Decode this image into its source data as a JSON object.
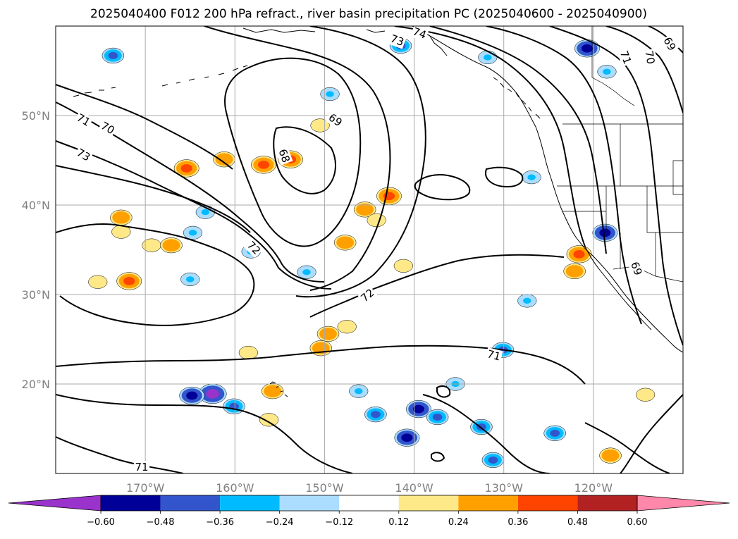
{
  "chart_data": {
    "type": "heatmap",
    "title": "2025040400 F012 200 hPa refract., river basin precipitation PC (2025040600 - 2025040900)",
    "xlabel": "",
    "ylabel": "",
    "lon_range": [
      -180,
      -110
    ],
    "lat_range": [
      10,
      60
    ],
    "x_ticks": [
      {
        "value": -170,
        "label": "170°W"
      },
      {
        "value": -160,
        "label": "160°W"
      },
      {
        "value": -150,
        "label": "150°W"
      },
      {
        "value": -140,
        "label": "140°W"
      },
      {
        "value": -130,
        "label": "130°W"
      },
      {
        "value": -120,
        "label": "120°W"
      }
    ],
    "y_ticks": [
      {
        "value": 20,
        "label": "20°N"
      },
      {
        "value": 30,
        "label": "30°N"
      },
      {
        "value": 40,
        "label": "40°N"
      },
      {
        "value": 50,
        "label": "50°N"
      }
    ],
    "grid": true,
    "colorbar": {
      "extend": "both",
      "levels": [
        -0.6,
        -0.48,
        -0.36,
        -0.24,
        -0.12,
        0.12,
        0.24,
        0.36,
        0.48,
        0.6
      ],
      "tick_labels": [
        "−0.60",
        "−0.48",
        "−0.36",
        "−0.24",
        "−0.12",
        "0.12",
        "0.24",
        "0.36",
        "0.48",
        "0.60"
      ],
      "colors": [
        "#9933cc",
        "#000099",
        "#3355cc",
        "#00bbff",
        "#aaddff",
        "#ffffff",
        "#ffe888",
        "#ffa000",
        "#ff4400",
        "#b22222",
        "#ff88aa"
      ]
    },
    "contours": {
      "variable": "200 hPa refractivity",
      "labels": [
        {
          "text": "69",
          "lon": -148.8,
          "lat": 49.5,
          "angle": 35
        },
        {
          "text": "68",
          "lon": -154.5,
          "lat": 45.5,
          "angle": 70
        },
        {
          "text": "70",
          "lon": -174.2,
          "lat": 48.6,
          "angle": 30
        },
        {
          "text": "71",
          "lon": -176.9,
          "lat": 49.5,
          "angle": 30
        },
        {
          "text": "73",
          "lon": -176.9,
          "lat": 45.6,
          "angle": 30
        },
        {
          "text": "72",
          "lon": -157.9,
          "lat": 35.2,
          "angle": 45
        },
        {
          "text": "72",
          "lon": -145.2,
          "lat": 29.9,
          "angle": -40
        },
        {
          "text": "71",
          "lon": -131.1,
          "lat": 23.2,
          "angle": 15
        },
        {
          "text": "71",
          "lon": -170.4,
          "lat": 10.7,
          "angle": 0
        },
        {
          "text": "73",
          "lon": -141.9,
          "lat": 58.4,
          "angle": 20
        },
        {
          "text": "74",
          "lon": -139.4,
          "lat": 59.2,
          "angle": 20
        },
        {
          "text": "71",
          "lon": -116.4,
          "lat": 56.5,
          "angle": 70
        },
        {
          "text": "70",
          "lon": -113.7,
          "lat": 56.5,
          "angle": 80
        },
        {
          "text": "69",
          "lon": -111.5,
          "lat": 58.0,
          "angle": 60
        },
        {
          "text": "69",
          "lon": -115.2,
          "lat": 32.9,
          "angle": 70
        }
      ]
    },
    "precip_pc_blobs": [
      {
        "lon": -165.4,
        "lat": 44.1,
        "value": 0.48
      },
      {
        "lon": -156.8,
        "lat": 44.5,
        "value": 0.48
      },
      {
        "lon": -153.8,
        "lat": 45.1,
        "value": 0.48
      },
      {
        "lon": -161.2,
        "lat": 45.1,
        "value": 0.36
      },
      {
        "lon": -150.5,
        "lat": 48.9,
        "value": 0.24
      },
      {
        "lon": -172.7,
        "lat": 38.6,
        "value": 0.36
      },
      {
        "lon": -172.7,
        "lat": 37.0,
        "value": 0.24
      },
      {
        "lon": -175.3,
        "lat": 31.4,
        "value": 0.24
      },
      {
        "lon": -171.8,
        "lat": 31.5,
        "value": 0.48
      },
      {
        "lon": -169.3,
        "lat": 35.5,
        "value": 0.24
      },
      {
        "lon": -167.1,
        "lat": 35.5,
        "value": 0.36
      },
      {
        "lon": -142.8,
        "lat": 41.0,
        "value": 0.48
      },
      {
        "lon": -147.7,
        "lat": 35.8,
        "value": 0.36
      },
      {
        "lon": -145.5,
        "lat": 39.5,
        "value": 0.36
      },
      {
        "lon": -149.6,
        "lat": 25.6,
        "value": 0.36
      },
      {
        "lon": -147.5,
        "lat": 26.4,
        "value": 0.24
      },
      {
        "lon": -150.4,
        "lat": 24.0,
        "value": 0.36
      },
      {
        "lon": -155.8,
        "lat": 19.2,
        "value": 0.36
      },
      {
        "lon": -156.2,
        "lat": 16.0,
        "value": 0.24
      },
      {
        "lon": -158.5,
        "lat": 23.5,
        "value": 0.24
      },
      {
        "lon": -121.6,
        "lat": 34.5,
        "value": 0.48
      },
      {
        "lon": -122.1,
        "lat": 32.6,
        "value": 0.36
      },
      {
        "lon": -144.2,
        "lat": 38.3,
        "value": 0.24
      },
      {
        "lon": -141.2,
        "lat": 33.2,
        "value": 0.24
      },
      {
        "lon": -118.1,
        "lat": 12.0,
        "value": 0.36
      },
      {
        "lon": -114.2,
        "lat": 18.8,
        "value": 0.24
      },
      {
        "lon": -162.5,
        "lat": 18.9,
        "value": -0.6
      },
      {
        "lon": -164.8,
        "lat": 18.7,
        "value": -0.48
      },
      {
        "lon": -160.1,
        "lat": 17.5,
        "value": -0.36
      },
      {
        "lon": -139.5,
        "lat": 17.2,
        "value": -0.48
      },
      {
        "lon": -140.8,
        "lat": 14.0,
        "value": -0.48
      },
      {
        "lon": -137.4,
        "lat": 16.3,
        "value": -0.36
      },
      {
        "lon": -144.3,
        "lat": 16.6,
        "value": -0.36
      },
      {
        "lon": -146.2,
        "lat": 19.2,
        "value": -0.24
      },
      {
        "lon": -131.2,
        "lat": 11.5,
        "value": -0.36
      },
      {
        "lon": -130.1,
        "lat": 23.8,
        "value": -0.36
      },
      {
        "lon": -124.3,
        "lat": 14.5,
        "value": -0.36
      },
      {
        "lon": -132.5,
        "lat": 15.2,
        "value": -0.36
      },
      {
        "lon": -120.7,
        "lat": 57.5,
        "value": -0.48
      },
      {
        "lon": -118.7,
        "lat": 36.9,
        "value": -0.48
      },
      {
        "lon": -141.5,
        "lat": 57.8,
        "value": -0.36
      },
      {
        "lon": -173.6,
        "lat": 56.7,
        "value": -0.36
      },
      {
        "lon": -131.8,
        "lat": 56.5,
        "value": -0.24
      },
      {
        "lon": -164.7,
        "lat": 36.9,
        "value": -0.24
      },
      {
        "lon": -158.2,
        "lat": 34.8,
        "value": -0.24
      },
      {
        "lon": -163.3,
        "lat": 39.2,
        "value": -0.24
      },
      {
        "lon": -149.4,
        "lat": 52.4,
        "value": -0.24
      },
      {
        "lon": -126.9,
        "lat": 43.1,
        "value": -0.24
      },
      {
        "lon": -135.4,
        "lat": 20.0,
        "value": -0.24
      },
      {
        "lon": -165.0,
        "lat": 31.7,
        "value": -0.24
      },
      {
        "lon": -152.0,
        "lat": 32.5,
        "value": -0.24
      },
      {
        "lon": -127.4,
        "lat": 29.3,
        "value": -0.24
      },
      {
        "lon": -118.5,
        "lat": 54.9,
        "value": -0.24
      }
    ]
  }
}
